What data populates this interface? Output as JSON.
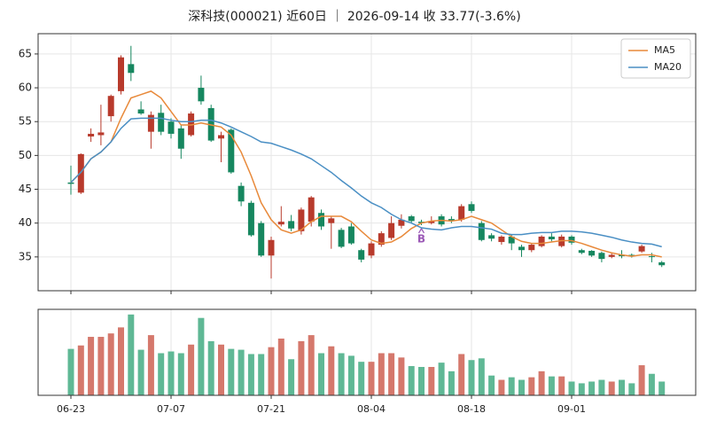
{
  "chart_data": {
    "type": "candlestick",
    "title": "深科技(000021) 近60日 ｜ 2026-09-14 收 33.77(-3.6%)",
    "categories": [
      "06-23",
      null,
      null,
      null,
      null,
      null,
      null,
      null,
      null,
      null,
      "07-07",
      null,
      null,
      null,
      null,
      null,
      null,
      null,
      null,
      null,
      "07-21",
      null,
      null,
      null,
      null,
      null,
      null,
      null,
      null,
      null,
      "08-04",
      null,
      null,
      null,
      null,
      null,
      null,
      null,
      null,
      null,
      "08-18",
      null,
      null,
      null,
      null,
      null,
      null,
      null,
      null,
      null,
      "09-01",
      null,
      null,
      null,
      null,
      null,
      null,
      null,
      null,
      null
    ],
    "open": [
      46,
      44.5,
      52.8,
      53,
      55.8,
      59.5,
      63.5,
      56.8,
      53.5,
      56.3,
      55,
      54,
      53,
      60,
      57,
      52.5,
      53.8,
      45.5,
      43,
      40,
      35.2,
      39.8,
      40.3,
      38.8,
      40.2,
      41.5,
      40,
      39,
      39.5,
      36,
      35.2,
      36.8,
      37.8,
      39.6,
      41,
      40.2,
      40,
      41,
      40.6,
      40.5,
      42.8,
      40,
      38.2,
      37.2,
      38,
      36.5,
      36,
      36.6,
      38,
      36.6,
      38,
      36,
      35.9,
      35.6,
      35,
      35.3,
      35.3,
      35.8,
      35.1,
      34.2
    ],
    "high": [
      48.5,
      50.3,
      54,
      57.5,
      59,
      64.8,
      66.2,
      58,
      56.5,
      57.5,
      55.5,
      54.5,
      56.5,
      61.8,
      57.5,
      53.5,
      54,
      46,
      43.3,
      40.3,
      38,
      42.5,
      41.2,
      42.3,
      44,
      42,
      41,
      39.3,
      40,
      36.2,
      37.3,
      38.8,
      41,
      41.3,
      41.2,
      40.5,
      41,
      41.3,
      41,
      42.8,
      43.2,
      40.3,
      38.5,
      38.2,
      38.3,
      36.8,
      37,
      38.2,
      38.5,
      38.3,
      38.2,
      36.2,
      36,
      35.8,
      35.5,
      36,
      35.5,
      36.8,
      35.6,
      34.4
    ],
    "low": [
      44.2,
      44.3,
      52,
      51.5,
      55,
      59,
      61,
      56,
      51,
      53,
      52.5,
      49.5,
      52.8,
      57.5,
      52,
      49,
      47.3,
      42.5,
      38,
      35,
      31.8,
      39.5,
      38.8,
      38.3,
      39.5,
      39,
      36.2,
      36.3,
      36.8,
      34.2,
      34.8,
      36.5,
      37.5,
      39.2,
      40,
      39.7,
      39.8,
      39.5,
      40,
      40.2,
      41.5,
      37.3,
      37.3,
      36.8,
      36,
      35,
      35.7,
      36.4,
      37.3,
      36.4,
      36.8,
      35.4,
      35,
      34.2,
      34.8,
      34.8,
      34.9,
      35.6,
      34.2,
      33.5
    ],
    "close": [
      45.8,
      50.2,
      53.2,
      53.4,
      58.8,
      64.5,
      62.2,
      56.2,
      56,
      53.5,
      53.2,
      51,
      56.2,
      58,
      52.2,
      53,
      47.5,
      43.2,
      38.2,
      35.2,
      37.5,
      40.2,
      39.2,
      42,
      43.8,
      39.5,
      40.7,
      36.5,
      37,
      34.6,
      37,
      38.5,
      40,
      40.5,
      40.3,
      40,
      40.3,
      39.8,
      40.4,
      42.5,
      41.8,
      37.5,
      37.7,
      38,
      37,
      36,
      36.8,
      38,
      37.6,
      38,
      37.1,
      35.6,
      35.2,
      34.7,
      35.3,
      35.1,
      35.1,
      36.6,
      35.03,
      33.77
    ],
    "volume": [
      54,
      58,
      68,
      68,
      72,
      79,
      94,
      53,
      70,
      49,
      51,
      49,
      59,
      90,
      63,
      59,
      54,
      53,
      48,
      48,
      56,
      66,
      42,
      63,
      70,
      49,
      57,
      49,
      46,
      39,
      39,
      49,
      49,
      44,
      34,
      33,
      33,
      38,
      28,
      48,
      41,
      43,
      23,
      18,
      21,
      18,
      21,
      28,
      22,
      22,
      16,
      14,
      16,
      18,
      16,
      18,
      14,
      35,
      25,
      16
    ],
    "series": [
      {
        "name": "MA5",
        "color": "#e8893a",
        "values": [
          46,
          47.5,
          49.5,
          50.5,
          52,
          55.5,
          58.5,
          59,
          59.5,
          58.5,
          56.5,
          54.5,
          54.5,
          54.8,
          54.5,
          54.2,
          53,
          50.5,
          47,
          43,
          40.5,
          39,
          38.5,
          39,
          40.2,
          41,
          41,
          41,
          40.2,
          38.8,
          37.5,
          37,
          37.2,
          38,
          39.2,
          40,
          40.3,
          40.4,
          40.3,
          40.5,
          41,
          40.5,
          40,
          39,
          38,
          37.3,
          37,
          37,
          37.2,
          37.4,
          37.4,
          37,
          36.5,
          36,
          35.6,
          35.3,
          35.1,
          35.3,
          35.3,
          35
        ]
      },
      {
        "name": "MA20",
        "color": "#4a8fc4",
        "values": [
          46,
          47.5,
          49.5,
          50.5,
          52,
          54,
          55.4,
          55.5,
          55.5,
          55.5,
          55.2,
          55,
          55,
          55.2,
          55.2,
          54.8,
          54.2,
          53.5,
          52.8,
          52,
          51.8,
          51.3,
          50.8,
          50.2,
          49.5,
          48.5,
          47.5,
          46.3,
          45.2,
          44,
          43,
          42.3,
          41.3,
          40.5,
          40,
          39.3,
          39.1,
          39,
          39.3,
          39.5,
          39.5,
          39.3,
          39.1,
          38.5,
          38.3,
          38.3,
          38.5,
          38.6,
          38.6,
          38.8,
          38.8,
          38.7,
          38.5,
          38.2,
          37.9,
          37.5,
          37.2,
          37,
          36.9,
          36.5
        ]
      }
    ],
    "signals": [
      null,
      null,
      null,
      null,
      null,
      null,
      null,
      null,
      null,
      null,
      null,
      null,
      null,
      null,
      null,
      null,
      null,
      null,
      null,
      null,
      null,
      null,
      null,
      null,
      null,
      null,
      null,
      null,
      null,
      null,
      null,
      null,
      null,
      null,
      null,
      "B",
      null,
      null,
      null,
      null,
      null,
      null,
      null,
      null,
      null,
      null,
      null,
      null,
      null,
      null,
      null,
      null,
      null,
      null,
      null,
      null,
      null,
      null,
      null,
      null
    ],
    "signal_color": "#9b59b6",
    "up_color": "#b83a2c",
    "down_color": "#16875f",
    "volume_up_color": "#d5786c",
    "volume_down_color": "#5fb895",
    "ylim": [
      30,
      68
    ],
    "yticks": [
      35,
      40,
      45,
      50,
      55,
      60,
      65
    ],
    "volume_ylim": [
      0,
      100
    ],
    "grid": true,
    "legend": "upper right"
  }
}
